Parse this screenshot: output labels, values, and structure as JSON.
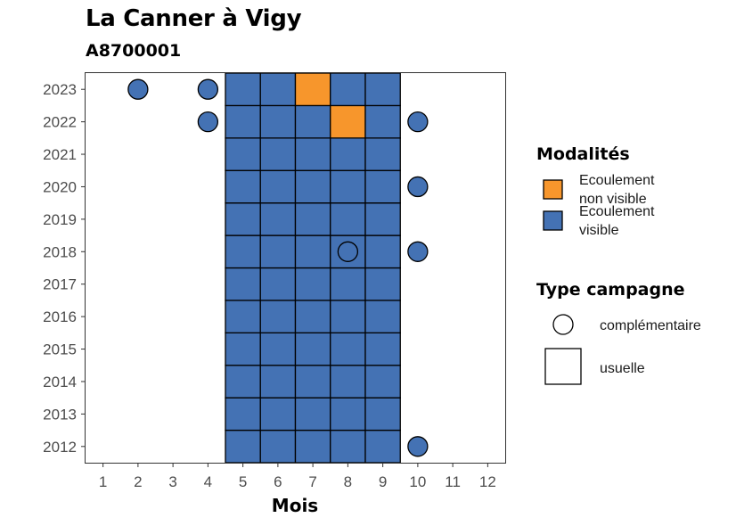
{
  "chart_data": {
    "type": "heatmap",
    "title": "La Canner à Vigy",
    "subtitle": "A8700001",
    "xlabel": "Mois",
    "ylabel": "",
    "x_ticks": [
      "1",
      "2",
      "3",
      "4",
      "5",
      "6",
      "7",
      "8",
      "9",
      "10",
      "11",
      "12"
    ],
    "y_ticks": [
      "2012",
      "2013",
      "2014",
      "2015",
      "2016",
      "2017",
      "2018",
      "2019",
      "2020",
      "2021",
      "2022",
      "2023"
    ],
    "xlim": [
      0.5,
      12.5
    ],
    "ylim": [
      2011.5,
      2023.5
    ],
    "grid": false,
    "legend_placement": "right",
    "colors": {
      "ecoulement_non_visible": "#F7962C",
      "ecoulement_visible": "#4472B4"
    },
    "legend_modalites": {
      "title": "Modalités",
      "items": [
        {
          "key": "ecoulement_non_visible",
          "line1": "Ecoulement",
          "line2": "non visible"
        },
        {
          "key": "ecoulement_visible",
          "line1": "Ecoulement",
          "line2": "visible"
        }
      ]
    },
    "legend_campagne": {
      "title": "Type campagne",
      "items": [
        {
          "shape": "circle",
          "label": "complémentaire"
        },
        {
          "shape": "square",
          "label": "usuelle"
        }
      ]
    },
    "observations": [
      {
        "year": 2012,
        "month": 5,
        "modalite": "ecoulement_visible",
        "campagne": "usuelle"
      },
      {
        "year": 2012,
        "month": 6,
        "modalite": "ecoulement_visible",
        "campagne": "usuelle"
      },
      {
        "year": 2012,
        "month": 7,
        "modalite": "ecoulement_visible",
        "campagne": "usuelle"
      },
      {
        "year": 2012,
        "month": 8,
        "modalite": "ecoulement_visible",
        "campagne": "usuelle"
      },
      {
        "year": 2012,
        "month": 9,
        "modalite": "ecoulement_visible",
        "campagne": "usuelle"
      },
      {
        "year": 2012,
        "month": 10,
        "modalite": "ecoulement_visible",
        "campagne": "complémentaire"
      },
      {
        "year": 2013,
        "month": 5,
        "modalite": "ecoulement_visible",
        "campagne": "usuelle"
      },
      {
        "year": 2013,
        "month": 6,
        "modalite": "ecoulement_visible",
        "campagne": "usuelle"
      },
      {
        "year": 2013,
        "month": 7,
        "modalite": "ecoulement_visible",
        "campagne": "usuelle"
      },
      {
        "year": 2013,
        "month": 8,
        "modalite": "ecoulement_visible",
        "campagne": "usuelle"
      },
      {
        "year": 2013,
        "month": 9,
        "modalite": "ecoulement_visible",
        "campagne": "usuelle"
      },
      {
        "year": 2014,
        "month": 5,
        "modalite": "ecoulement_visible",
        "campagne": "usuelle"
      },
      {
        "year": 2014,
        "month": 6,
        "modalite": "ecoulement_visible",
        "campagne": "usuelle"
      },
      {
        "year": 2014,
        "month": 7,
        "modalite": "ecoulement_visible",
        "campagne": "usuelle"
      },
      {
        "year": 2014,
        "month": 8,
        "modalite": "ecoulement_visible",
        "campagne": "usuelle"
      },
      {
        "year": 2014,
        "month": 9,
        "modalite": "ecoulement_visible",
        "campagne": "usuelle"
      },
      {
        "year": 2015,
        "month": 5,
        "modalite": "ecoulement_visible",
        "campagne": "usuelle"
      },
      {
        "year": 2015,
        "month": 6,
        "modalite": "ecoulement_visible",
        "campagne": "usuelle"
      },
      {
        "year": 2015,
        "month": 7,
        "modalite": "ecoulement_visible",
        "campagne": "usuelle"
      },
      {
        "year": 2015,
        "month": 8,
        "modalite": "ecoulement_visible",
        "campagne": "usuelle"
      },
      {
        "year": 2015,
        "month": 9,
        "modalite": "ecoulement_visible",
        "campagne": "usuelle"
      },
      {
        "year": 2016,
        "month": 5,
        "modalite": "ecoulement_visible",
        "campagne": "usuelle"
      },
      {
        "year": 2016,
        "month": 6,
        "modalite": "ecoulement_visible",
        "campagne": "usuelle"
      },
      {
        "year": 2016,
        "month": 7,
        "modalite": "ecoulement_visible",
        "campagne": "usuelle"
      },
      {
        "year": 2016,
        "month": 8,
        "modalite": "ecoulement_visible",
        "campagne": "usuelle"
      },
      {
        "year": 2016,
        "month": 9,
        "modalite": "ecoulement_visible",
        "campagne": "usuelle"
      },
      {
        "year": 2017,
        "month": 5,
        "modalite": "ecoulement_visible",
        "campagne": "usuelle"
      },
      {
        "year": 2017,
        "month": 6,
        "modalite": "ecoulement_visible",
        "campagne": "usuelle"
      },
      {
        "year": 2017,
        "month": 7,
        "modalite": "ecoulement_visible",
        "campagne": "usuelle"
      },
      {
        "year": 2017,
        "month": 8,
        "modalite": "ecoulement_visible",
        "campagne": "usuelle"
      },
      {
        "year": 2017,
        "month": 9,
        "modalite": "ecoulement_visible",
        "campagne": "usuelle"
      },
      {
        "year": 2018,
        "month": 5,
        "modalite": "ecoulement_visible",
        "campagne": "usuelle"
      },
      {
        "year": 2018,
        "month": 6,
        "modalite": "ecoulement_visible",
        "campagne": "usuelle"
      },
      {
        "year": 2018,
        "month": 7,
        "modalite": "ecoulement_visible",
        "campagne": "usuelle"
      },
      {
        "year": 2018,
        "month": 8,
        "modalite": "ecoulement_visible",
        "campagne": "usuelle"
      },
      {
        "year": 2018,
        "month": 8,
        "modalite": "ecoulement_visible",
        "campagne": "complémentaire"
      },
      {
        "year": 2018,
        "month": 9,
        "modalite": "ecoulement_visible",
        "campagne": "usuelle"
      },
      {
        "year": 2018,
        "month": 10,
        "modalite": "ecoulement_visible",
        "campagne": "complémentaire"
      },
      {
        "year": 2019,
        "month": 5,
        "modalite": "ecoulement_visible",
        "campagne": "usuelle"
      },
      {
        "year": 2019,
        "month": 6,
        "modalite": "ecoulement_visible",
        "campagne": "usuelle"
      },
      {
        "year": 2019,
        "month": 7,
        "modalite": "ecoulement_visible",
        "campagne": "usuelle"
      },
      {
        "year": 2019,
        "month": 8,
        "modalite": "ecoulement_visible",
        "campagne": "usuelle"
      },
      {
        "year": 2019,
        "month": 9,
        "modalite": "ecoulement_visible",
        "campagne": "usuelle"
      },
      {
        "year": 2020,
        "month": 5,
        "modalite": "ecoulement_visible",
        "campagne": "usuelle"
      },
      {
        "year": 2020,
        "month": 6,
        "modalite": "ecoulement_visible",
        "campagne": "usuelle"
      },
      {
        "year": 2020,
        "month": 7,
        "modalite": "ecoulement_visible",
        "campagne": "usuelle"
      },
      {
        "year": 2020,
        "month": 8,
        "modalite": "ecoulement_visible",
        "campagne": "usuelle"
      },
      {
        "year": 2020,
        "month": 9,
        "modalite": "ecoulement_visible",
        "campagne": "usuelle"
      },
      {
        "year": 2020,
        "month": 10,
        "modalite": "ecoulement_visible",
        "campagne": "complémentaire"
      },
      {
        "year": 2021,
        "month": 5,
        "modalite": "ecoulement_visible",
        "campagne": "usuelle"
      },
      {
        "year": 2021,
        "month": 6,
        "modalite": "ecoulement_visible",
        "campagne": "usuelle"
      },
      {
        "year": 2021,
        "month": 7,
        "modalite": "ecoulement_visible",
        "campagne": "usuelle"
      },
      {
        "year": 2021,
        "month": 8,
        "modalite": "ecoulement_visible",
        "campagne": "usuelle"
      },
      {
        "year": 2021,
        "month": 9,
        "modalite": "ecoulement_visible",
        "campagne": "usuelle"
      },
      {
        "year": 2022,
        "month": 4,
        "modalite": "ecoulement_visible",
        "campagne": "complémentaire"
      },
      {
        "year": 2022,
        "month": 5,
        "modalite": "ecoulement_visible",
        "campagne": "usuelle"
      },
      {
        "year": 2022,
        "month": 6,
        "modalite": "ecoulement_visible",
        "campagne": "usuelle"
      },
      {
        "year": 2022,
        "month": 7,
        "modalite": "ecoulement_visible",
        "campagne": "usuelle"
      },
      {
        "year": 2022,
        "month": 8,
        "modalite": "ecoulement_non_visible",
        "campagne": "usuelle"
      },
      {
        "year": 2022,
        "month": 9,
        "modalite": "ecoulement_visible",
        "campagne": "usuelle"
      },
      {
        "year": 2022,
        "month": 10,
        "modalite": "ecoulement_visible",
        "campagne": "complémentaire"
      },
      {
        "year": 2023,
        "month": 2,
        "modalite": "ecoulement_visible",
        "campagne": "complémentaire"
      },
      {
        "year": 2023,
        "month": 4,
        "modalite": "ecoulement_visible",
        "campagne": "complémentaire"
      },
      {
        "year": 2023,
        "month": 5,
        "modalite": "ecoulement_visible",
        "campagne": "usuelle"
      },
      {
        "year": 2023,
        "month": 6,
        "modalite": "ecoulement_visible",
        "campagne": "usuelle"
      },
      {
        "year": 2023,
        "month": 7,
        "modalite": "ecoulement_non_visible",
        "campagne": "usuelle"
      },
      {
        "year": 2023,
        "month": 8,
        "modalite": "ecoulement_visible",
        "campagne": "usuelle"
      },
      {
        "year": 2023,
        "month": 9,
        "modalite": "ecoulement_visible",
        "campagne": "usuelle"
      }
    ]
  }
}
